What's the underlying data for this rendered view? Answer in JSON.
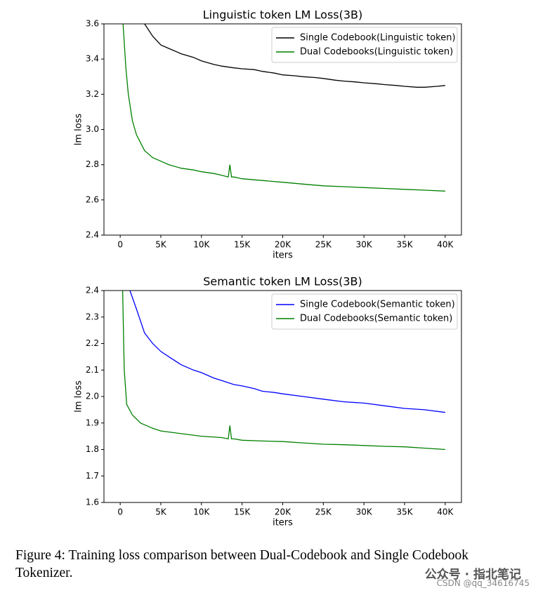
{
  "chart_data": [
    {
      "type": "line",
      "title": "Linguistic token LM Loss(3B)",
      "x_label": "iters",
      "y_label": "lm loss",
      "xlim": [
        -2000,
        42000
      ],
      "xticks": [
        {
          "value": 0,
          "label": "0"
        },
        {
          "value": 5000,
          "label": "5K"
        },
        {
          "value": 10000,
          "label": "10K"
        },
        {
          "value": 15000,
          "label": "15K"
        },
        {
          "value": 20000,
          "label": "20K"
        },
        {
          "value": 25000,
          "label": "25K"
        },
        {
          "value": 30000,
          "label": "30K"
        },
        {
          "value": 35000,
          "label": "35K"
        },
        {
          "value": 40000,
          "label": "40K"
        }
      ],
      "ylim": [
        2.4,
        3.6
      ],
      "yticks": [
        2.4,
        2.6,
        2.8,
        {
          "value": 3,
          "label": "3.0"
        },
        3.2,
        3.4,
        3.6
      ],
      "legend": "upper right",
      "series": [
        {
          "name": "Single Codebook(Linguistic token)",
          "color": "#000000",
          "x": [
            3000,
            4000,
            5000,
            6000,
            7500,
            9000,
            10000,
            11500,
            12500,
            14000,
            15000,
            16500,
            17500,
            19000,
            20000,
            21500,
            22500,
            24000,
            25000,
            26500,
            27500,
            29000,
            30000,
            31500,
            32500,
            34000,
            35000,
            36500,
            37500,
            39000,
            40000
          ],
          "values": [
            3.6,
            3.53,
            3.48,
            3.46,
            3.43,
            3.41,
            3.39,
            3.37,
            3.36,
            3.35,
            3.345,
            3.34,
            3.33,
            3.32,
            3.31,
            3.305,
            3.3,
            3.295,
            3.29,
            3.28,
            3.275,
            3.27,
            3.265,
            3.26,
            3.255,
            3.25,
            3.245,
            3.24,
            3.24,
            3.245,
            3.25
          ]
        },
        {
          "name": "Dual Codebooks(Linguistic token)",
          "color": "#008000",
          "x": [
            350,
            700,
            1000,
            1500,
            2000,
            3000,
            4000,
            5000,
            6000,
            7500,
            9000,
            10000,
            11500,
            12500,
            13300,
            13500,
            13700,
            14000,
            15000,
            17500,
            20000,
            22500,
            25000,
            27500,
            30000,
            32500,
            35000,
            37500,
            40000
          ],
          "values": [
            3.6,
            3.35,
            3.2,
            3.05,
            2.97,
            2.88,
            2.84,
            2.82,
            2.8,
            2.78,
            2.77,
            2.76,
            2.75,
            2.74,
            2.73,
            2.8,
            2.73,
            2.73,
            2.72,
            2.71,
            2.7,
            2.69,
            2.68,
            2.675,
            2.67,
            2.665,
            2.66,
            2.655,
            2.65
          ]
        }
      ]
    },
    {
      "type": "line",
      "title": "Semantic token LM Loss(3B)",
      "x_label": "iters",
      "y_label": "lm loss",
      "xlim": [
        -2000,
        42000
      ],
      "xticks": [
        {
          "value": 0,
          "label": "0"
        },
        {
          "value": 5000,
          "label": "5K"
        },
        {
          "value": 10000,
          "label": "10K"
        },
        {
          "value": 15000,
          "label": "15K"
        },
        {
          "value": 20000,
          "label": "20K"
        },
        {
          "value": 25000,
          "label": "25K"
        },
        {
          "value": 30000,
          "label": "30K"
        },
        {
          "value": 35000,
          "label": "35K"
        },
        {
          "value": 40000,
          "label": "40K"
        }
      ],
      "ylim": [
        1.6,
        2.4
      ],
      "yticks": [
        1.6,
        1.7,
        1.8,
        1.9,
        {
          "value": 2,
          "label": "2.0"
        },
        2.1,
        2.2,
        2.3,
        2.4
      ],
      "legend": "upper right",
      "series": [
        {
          "name": "Single Codebook(Semantic token)",
          "color": "#0000ff",
          "x": [
            1200,
            2000,
            3000,
            4000,
            5000,
            6000,
            7500,
            9000,
            10000,
            11500,
            12500,
            14000,
            15000,
            16500,
            17500,
            19000,
            20000,
            22500,
            25000,
            27500,
            30000,
            32500,
            35000,
            37500,
            40000
          ],
          "values": [
            2.4,
            2.33,
            2.24,
            2.2,
            2.17,
            2.15,
            2.12,
            2.1,
            2.09,
            2.07,
            2.06,
            2.045,
            2.04,
            2.03,
            2.02,
            2.015,
            2.01,
            2.0,
            1.99,
            1.98,
            1.975,
            1.965,
            1.955,
            1.95,
            1.94
          ]
        },
        {
          "name": "Dual Codebooks(Semantic token)",
          "color": "#008000",
          "x": [
            300,
            500,
            800,
            1500,
            2500,
            4000,
            5000,
            7500,
            10000,
            12500,
            13300,
            13500,
            13700,
            14000,
            15000,
            17500,
            20000,
            22500,
            25000,
            27500,
            30000,
            32500,
            35000,
            37500,
            40000
          ],
          "values": [
            2.4,
            2.1,
            1.97,
            1.93,
            1.9,
            1.88,
            1.87,
            1.86,
            1.85,
            1.845,
            1.84,
            1.89,
            1.84,
            1.84,
            1.835,
            1.832,
            1.83,
            1.825,
            1.82,
            1.818,
            1.815,
            1.812,
            1.81,
            1.805,
            1.8
          ]
        }
      ]
    }
  ],
  "caption": "Figure 4: Training loss comparison between Dual-Codebook and Single Codebook Tokenizer.",
  "watermark": {
    "wechat": "公众号 · 指北笔记",
    "csdn": "CSDN @qq_34616745"
  }
}
